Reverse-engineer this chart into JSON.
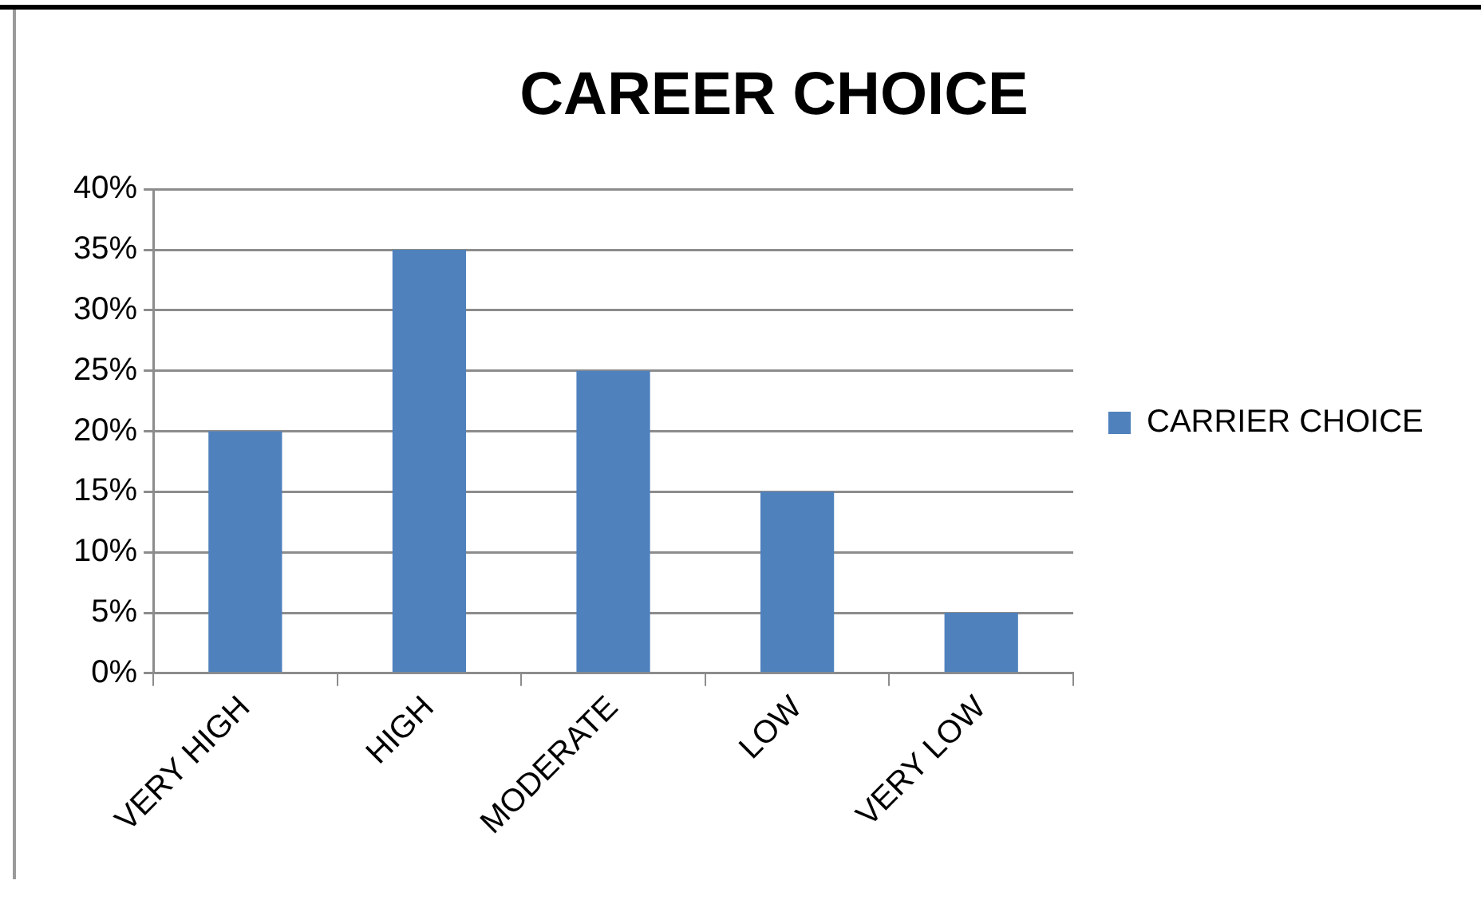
{
  "chart_data": {
    "type": "bar",
    "title": "CAREER CHOICE",
    "categories": [
      "VERY HIGH",
      "HIGH",
      "MODERATE",
      "LOW",
      "VERY LOW"
    ],
    "series": [
      {
        "name": "CARRIER CHOICE",
        "color": "#4f81bd",
        "values": [
          20,
          35,
          25,
          15,
          5
        ]
      }
    ],
    "ylim": [
      0,
      40
    ],
    "yticks": [
      {
        "value": 0,
        "label": "0%"
      },
      {
        "value": 5,
        "label": "5%"
      },
      {
        "value": 10,
        "label": "10%"
      },
      {
        "value": 15,
        "label": "15%"
      },
      {
        "value": 20,
        "label": "20%"
      },
      {
        "value": 25,
        "label": "25%"
      },
      {
        "value": 30,
        "label": "30%"
      },
      {
        "value": 35,
        "label": "35%"
      },
      {
        "value": 40,
        "label": "40%"
      }
    ],
    "grid": "y",
    "legend": "right"
  }
}
